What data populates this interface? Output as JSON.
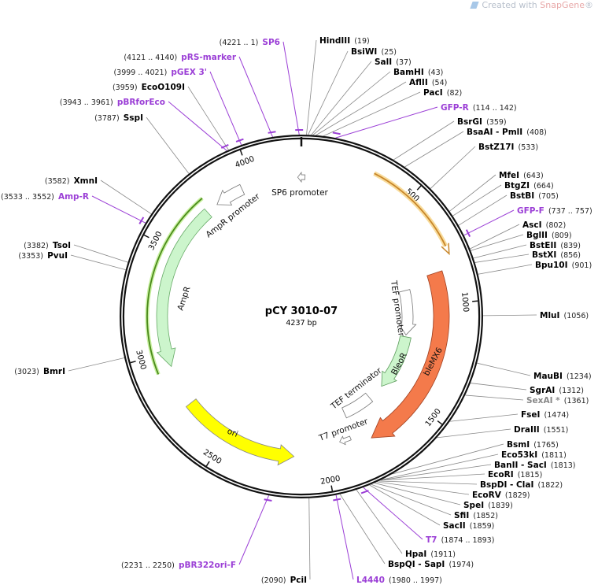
{
  "watermark": {
    "prefix": "Created with ",
    "brand": "SnapGene",
    "suffix": "®"
  },
  "plasmid": {
    "name": "pCY 3010-07",
    "length_label": "4237 bp",
    "length": 4237
  },
  "colors": {
    "enzyme": "#000000",
    "primer": "#9b3fd6",
    "nonunique": "#888888",
    "bleMX6": "#f47a4b",
    "ori": "#ffff00",
    "marker": "#ccf5cc",
    "promoter": "#ffffff",
    "orf_line": "#c8862a"
  },
  "ticks": [
    "500",
    "1000",
    "1500",
    "2000",
    "2500",
    "3000",
    "3500",
    "4000"
  ],
  "sites": [
    {
      "name": "HindIII",
      "pos": "(19)",
      "at": 19,
      "kind": "enzyme"
    },
    {
      "name": "BsiWI",
      "pos": "(25)",
      "at": 25,
      "kind": "enzyme"
    },
    {
      "name": "SalI",
      "pos": "(37)",
      "at": 37,
      "kind": "enzyme"
    },
    {
      "name": "BamHI",
      "pos": "(43)",
      "at": 43,
      "kind": "enzyme"
    },
    {
      "name": "AflII",
      "pos": "(54)",
      "at": 54,
      "kind": "enzyme"
    },
    {
      "name": "PacI",
      "pos": "(82)",
      "at": 82,
      "kind": "enzyme"
    },
    {
      "name": "GFP-R",
      "pos": "(114 .. 142)",
      "at": 128,
      "kind": "primer"
    },
    {
      "name": "BsrGI",
      "pos": "(359)",
      "at": 359,
      "kind": "enzyme"
    },
    {
      "name": "BsaAI - PmlI",
      "pos": "(408)",
      "at": 408,
      "kind": "enzyme"
    },
    {
      "name": "BstZ17I",
      "pos": "(533)",
      "at": 533,
      "kind": "enzyme"
    },
    {
      "name": "MfeI",
      "pos": "(643)",
      "at": 643,
      "kind": "enzyme"
    },
    {
      "name": "BtgZI",
      "pos": "(664)",
      "at": 664,
      "kind": "enzyme"
    },
    {
      "name": "BstBI",
      "pos": "(705)",
      "at": 705,
      "kind": "enzyme"
    },
    {
      "name": "GFP-F",
      "pos": "(737 .. 757)",
      "at": 747,
      "kind": "primer"
    },
    {
      "name": "AscI",
      "pos": "(802)",
      "at": 802,
      "kind": "enzyme"
    },
    {
      "name": "BglII",
      "pos": "(809)",
      "at": 809,
      "kind": "enzyme"
    },
    {
      "name": "BstEII",
      "pos": "(839)",
      "at": 839,
      "kind": "enzyme"
    },
    {
      "name": "BstXI",
      "pos": "(856)",
      "at": 856,
      "kind": "enzyme"
    },
    {
      "name": "Bpu10I",
      "pos": "(901)",
      "at": 901,
      "kind": "enzyme"
    },
    {
      "name": "MluI",
      "pos": "(1056)",
      "at": 1056,
      "kind": "enzyme"
    },
    {
      "name": "MauBI",
      "pos": "(1234)",
      "at": 1234,
      "kind": "enzyme"
    },
    {
      "name": "SgrAI",
      "pos": "(1312)",
      "at": 1312,
      "kind": "enzyme"
    },
    {
      "name": "SexAI *",
      "pos": "(1361)",
      "at": 1361,
      "kind": "nonunique"
    },
    {
      "name": "FseI",
      "pos": "(1474)",
      "at": 1474,
      "kind": "enzyme"
    },
    {
      "name": "DraIII",
      "pos": "(1551)",
      "at": 1551,
      "kind": "enzyme"
    },
    {
      "name": "BsmI",
      "pos": "(1765)",
      "at": 1765,
      "kind": "enzyme"
    },
    {
      "name": "Eco53kI",
      "pos": "(1811)",
      "at": 1811,
      "kind": "enzyme"
    },
    {
      "name": "BanII - SacI",
      "pos": "(1813)",
      "at": 1813,
      "kind": "enzyme"
    },
    {
      "name": "EcoRI",
      "pos": "(1815)",
      "at": 1815,
      "kind": "enzyme"
    },
    {
      "name": "BspDI - ClaI",
      "pos": "(1822)",
      "at": 1822,
      "kind": "enzyme"
    },
    {
      "name": "EcoRV",
      "pos": "(1829)",
      "at": 1829,
      "kind": "enzyme"
    },
    {
      "name": "SpeI",
      "pos": "(1839)",
      "at": 1839,
      "kind": "enzyme"
    },
    {
      "name": "SfiI",
      "pos": "(1852)",
      "at": 1852,
      "kind": "enzyme"
    },
    {
      "name": "SacII",
      "pos": "(1859)",
      "at": 1859,
      "kind": "enzyme"
    },
    {
      "name": "T7",
      "pos": "(1874 .. 1893)",
      "at": 1884,
      "kind": "primer"
    },
    {
      "name": "HpaI",
      "pos": "(1911)",
      "at": 1911,
      "kind": "enzyme"
    },
    {
      "name": "BspQI - SapI",
      "pos": "(1974)",
      "at": 1974,
      "kind": "enzyme"
    },
    {
      "name": "L4440",
      "pos": "(1980 .. 1997)",
      "at": 1989,
      "kind": "primer"
    },
    {
      "name": "PciI",
      "pos": "(2090)",
      "at": 2090,
      "kind": "enzyme"
    },
    {
      "name": "pBR322ori-F",
      "pos": "(2231 .. 2250)",
      "at": 2240,
      "kind": "primer"
    },
    {
      "name": "BmrI",
      "pos": "(3023)",
      "at": 3023,
      "kind": "enzyme"
    },
    {
      "name": "PvuI",
      "pos": "(3353)",
      "at": 3353,
      "kind": "enzyme"
    },
    {
      "name": "TsoI",
      "pos": "(3382)",
      "at": 3382,
      "kind": "enzyme"
    },
    {
      "name": "Amp-R",
      "pos": "(3533 .. 3552)",
      "at": 3542,
      "kind": "primer"
    },
    {
      "name": "XmnI",
      "pos": "(3582)",
      "at": 3582,
      "kind": "enzyme"
    },
    {
      "name": "SspI",
      "pos": "(3787)",
      "at": 3787,
      "kind": "enzyme"
    },
    {
      "name": "pBRforEco",
      "pos": "(3943 .. 3961)",
      "at": 3952,
      "kind": "primer"
    },
    {
      "name": "EcoO109I",
      "pos": "(3959)",
      "at": 3959,
      "kind": "enzyme"
    },
    {
      "name": "pGEX 3'",
      "pos": "(3999 .. 4021)",
      "at": 4010,
      "kind": "primer"
    },
    {
      "name": "pRS-marker",
      "pos": "(4121 .. 4140)",
      "at": 4130,
      "kind": "primer"
    },
    {
      "name": "SP6",
      "pos": "(4221 .. 1)",
      "at": 4229,
      "kind": "primer"
    }
  ],
  "features": {
    "sp6_promoter": "SP6 promoter",
    "ampr_promoter": "AmpR promoter",
    "ampr": "AmpR",
    "tef_promoter": "TEF promoter",
    "bleor": "BleoR",
    "tef_terminator": "TEF terminator",
    "blemx6": "bleMX6",
    "t7_promoter": "T7 promoter",
    "ori": "ori"
  }
}
